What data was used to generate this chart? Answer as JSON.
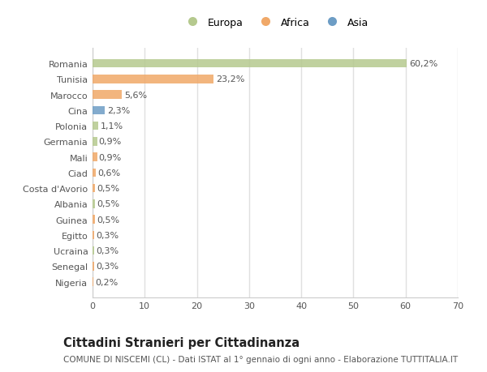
{
  "categories": [
    "Romania",
    "Tunisia",
    "Marocco",
    "Cina",
    "Polonia",
    "Germania",
    "Mali",
    "Ciad",
    "Costa d'Avorio",
    "Albania",
    "Guinea",
    "Egitto",
    "Ucraina",
    "Senegal",
    "Nigeria"
  ],
  "values": [
    60.2,
    23.2,
    5.6,
    2.3,
    1.1,
    0.9,
    0.9,
    0.6,
    0.5,
    0.5,
    0.5,
    0.3,
    0.3,
    0.3,
    0.2
  ],
  "labels": [
    "60,2%",
    "23,2%",
    "5,6%",
    "2,3%",
    "1,1%",
    "0,9%",
    "0,9%",
    "0,6%",
    "0,5%",
    "0,5%",
    "0,5%",
    "0,3%",
    "0,3%",
    "0,3%",
    "0,2%"
  ],
  "colors": [
    "#b5c98e",
    "#f0a868",
    "#f0a868",
    "#6d9dc5",
    "#b5c98e",
    "#b5c98e",
    "#f0a868",
    "#f0a868",
    "#f0a868",
    "#b5c98e",
    "#f0a868",
    "#f0a868",
    "#b5c98e",
    "#f0a868",
    "#f0a868"
  ],
  "legend": [
    {
      "label": "Europa",
      "color": "#b5c98e"
    },
    {
      "label": "Africa",
      "color": "#f0a868"
    },
    {
      "label": "Asia",
      "color": "#6d9dc5"
    }
  ],
  "xlim": [
    0,
    70
  ],
  "xticks": [
    0,
    10,
    20,
    30,
    40,
    50,
    60,
    70
  ],
  "title": "Cittadini Stranieri per Cittadinanza",
  "subtitle": "COMUNE DI NISCEMI (CL) - Dati ISTAT al 1° gennaio di ogni anno - Elaborazione TUTTITALIA.IT",
  "background_color": "#ffffff",
  "plot_bg_color": "#ffffff",
  "bar_height": 0.55,
  "label_fontsize": 8,
  "tick_fontsize": 8,
  "title_fontsize": 10.5,
  "subtitle_fontsize": 7.5,
  "grid_color": "#e0e0e0",
  "text_color": "#555555"
}
